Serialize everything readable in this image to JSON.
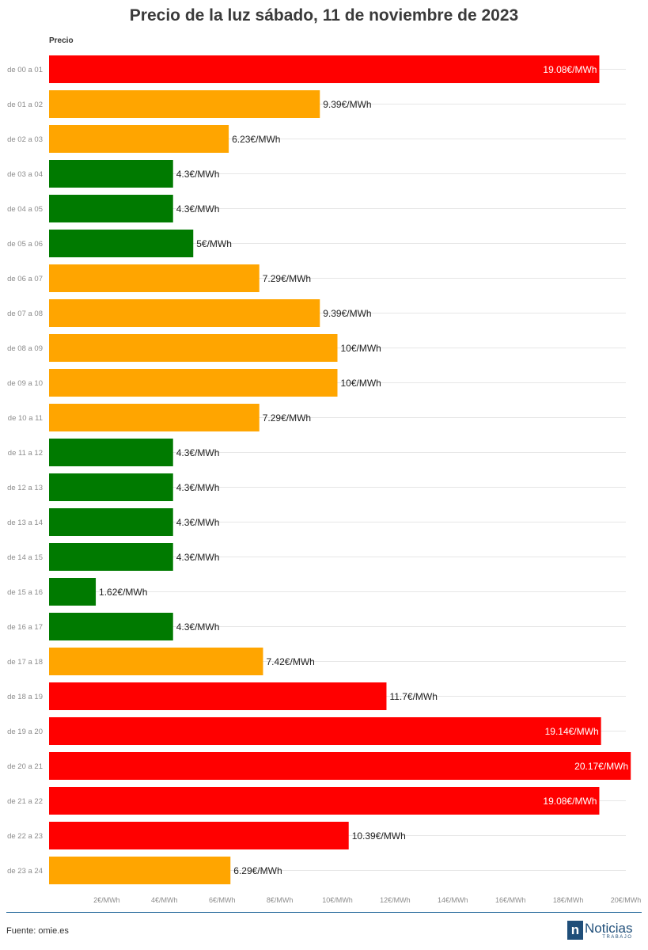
{
  "title": "Precio de la luz sábado, 11 de noviembre de 2023",
  "column_label": "Precio",
  "source": "Fuente: omie.es",
  "logo": {
    "letter": "n",
    "main": "Noticias",
    "sub": "TRABAJO"
  },
  "colors": {
    "red": "#ff0000",
    "orange": "#ffa500",
    "green": "#007a00",
    "grid": "#e6e6e6",
    "axis_text": "#8c8c8c",
    "rule": "#2f6f9f"
  },
  "chart_data": {
    "type": "bar",
    "orientation": "horizontal",
    "title": "Precio de la luz sábado, 11 de noviembre de 2023",
    "ylabel": "Precio",
    "unit": "€/MWh",
    "xlim": [
      0,
      20
    ],
    "x_ticks": [
      2,
      4,
      6,
      8,
      10,
      12,
      14,
      16,
      18,
      20
    ],
    "x_tick_labels": [
      "2€/MWh",
      "4€/MWh",
      "6€/MWh",
      "8€/MWh",
      "10€/MWh",
      "12€/MWh",
      "14€/MWh",
      "16€/MWh",
      "18€/MWh",
      "20€/MWh"
    ],
    "grid": true,
    "categories": [
      "de 00 a 01",
      "de 01 a 02",
      "de 02 a 03",
      "de 03 a 04",
      "de 04 a 05",
      "de 05 a 06",
      "de 06 a 07",
      "de 07 a 08",
      "de 08 a 09",
      "de 09 a 10",
      "de 10 a 11",
      "de 11 a 12",
      "de 12 a 13",
      "de 13 a 14",
      "de 14 a 15",
      "de 15 a 16",
      "de 16 a 17",
      "de 17 a 18",
      "de 18 a 19",
      "de 19 a 20",
      "de 20 a 21",
      "de 21 a 22",
      "de 22 a 23",
      "de 23 a 24"
    ],
    "values": [
      19.08,
      9.39,
      6.23,
      4.3,
      4.3,
      5,
      7.29,
      9.39,
      10,
      10,
      7.29,
      4.3,
      4.3,
      4.3,
      4.3,
      1.62,
      4.3,
      7.42,
      11.7,
      19.14,
      20.17,
      19.08,
      10.39,
      6.29
    ],
    "data_labels": [
      "19.08€/MWh",
      "9.39€/MWh",
      "6.23€/MWh",
      "4.3€/MWh",
      "4.3€/MWh",
      "5€/MWh",
      "7.29€/MWh",
      "9.39€/MWh",
      "10€/MWh",
      "10€/MWh",
      "7.29€/MWh",
      "4.3€/MWh",
      "4.3€/MWh",
      "4.3€/MWh",
      "4.3€/MWh",
      "1.62€/MWh",
      "4.3€/MWh",
      "7.42€/MWh",
      "11.7€/MWh",
      "19.14€/MWh",
      "20.17€/MWh",
      "19.08€/MWh",
      "10.39€/MWh",
      "6.29€/MWh"
    ],
    "bar_colors": [
      "red",
      "orange",
      "orange",
      "green",
      "green",
      "green",
      "orange",
      "orange",
      "orange",
      "orange",
      "orange",
      "green",
      "green",
      "green",
      "green",
      "green",
      "green",
      "orange",
      "red",
      "red",
      "red",
      "red",
      "red",
      "orange"
    ]
  }
}
